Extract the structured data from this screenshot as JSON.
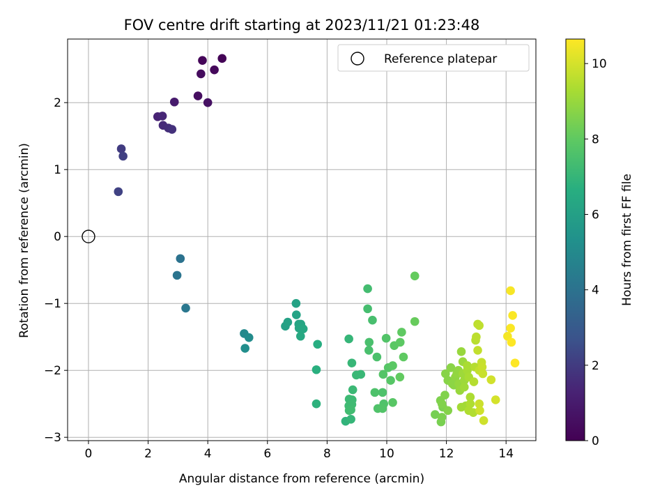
{
  "chart_data": {
    "type": "scatter",
    "title": "FOV centre drift starting at 2023/11/21 01:23:48",
    "xlabel": "Angular distance from reference (arcmin)",
    "ylabel": "Rotation from reference (arcmin)",
    "xlim": [
      -0.7,
      15.0
    ],
    "ylim": [
      -3.05,
      2.95
    ],
    "xticks": [
      0,
      2,
      4,
      6,
      8,
      10,
      12,
      14
    ],
    "yticks": [
      -3,
      -2,
      -1,
      0,
      1,
      2
    ],
    "grid": true,
    "legend": {
      "placement": "top-right",
      "entries": [
        "Reference platepar"
      ]
    },
    "reference_point": {
      "x": 0,
      "y": 0
    },
    "colorbar": {
      "label": "Hours from first FF file",
      "range": [
        0,
        10.65
      ],
      "ticks": [
        0,
        2,
        4,
        6,
        8,
        10
      ],
      "colormap": "viridis"
    },
    "points": [
      {
        "x": 4.48,
        "y": 2.66,
        "c": 0.1
      },
      {
        "x": 3.82,
        "y": 2.63,
        "c": 0.2
      },
      {
        "x": 4.22,
        "y": 2.49,
        "c": 0.3
      },
      {
        "x": 3.77,
        "y": 2.43,
        "c": 0.4
      },
      {
        "x": 3.67,
        "y": 2.1,
        "c": 0.5
      },
      {
        "x": 4.0,
        "y": 2.0,
        "c": 0.6
      },
      {
        "x": 2.88,
        "y": 2.01,
        "c": 1.0
      },
      {
        "x": 2.32,
        "y": 1.79,
        "c": 1.3
      },
      {
        "x": 2.48,
        "y": 1.8,
        "c": 1.4
      },
      {
        "x": 2.5,
        "y": 1.66,
        "c": 1.5
      },
      {
        "x": 2.68,
        "y": 1.62,
        "c": 1.6
      },
      {
        "x": 2.8,
        "y": 1.6,
        "c": 1.7
      },
      {
        "x": 1.1,
        "y": 1.31,
        "c": 2.0
      },
      {
        "x": 1.16,
        "y": 1.2,
        "c": 2.1
      },
      {
        "x": 1.0,
        "y": 0.67,
        "c": 2.2
      },
      {
        "x": 3.08,
        "y": -0.33,
        "c": 4.0
      },
      {
        "x": 2.97,
        "y": -0.58,
        "c": 4.1
      },
      {
        "x": 3.26,
        "y": -1.07,
        "c": 4.2
      },
      {
        "x": 5.22,
        "y": -1.45,
        "c": 5.0
      },
      {
        "x": 5.38,
        "y": -1.51,
        "c": 5.1
      },
      {
        "x": 5.25,
        "y": -1.67,
        "c": 5.2
      },
      {
        "x": 6.6,
        "y": -1.34,
        "c": 6.0
      },
      {
        "x": 6.68,
        "y": -1.28,
        "c": 6.05
      },
      {
        "x": 6.96,
        "y": -1.0,
        "c": 6.1
      },
      {
        "x": 6.97,
        "y": -1.17,
        "c": 6.15
      },
      {
        "x": 7.05,
        "y": -1.31,
        "c": 6.2
      },
      {
        "x": 7.12,
        "y": -1.31,
        "c": 6.25
      },
      {
        "x": 7.06,
        "y": -1.37,
        "c": 6.3
      },
      {
        "x": 7.2,
        "y": -1.38,
        "c": 6.35
      },
      {
        "x": 7.11,
        "y": -1.49,
        "c": 6.4
      },
      {
        "x": 7.68,
        "y": -1.61,
        "c": 6.6
      },
      {
        "x": 7.64,
        "y": -1.99,
        "c": 6.7
      },
      {
        "x": 7.64,
        "y": -2.5,
        "c": 6.8
      },
      {
        "x": 8.62,
        "y": -2.76,
        "c": 6.9
      },
      {
        "x": 8.8,
        "y": -2.73,
        "c": 7.0
      },
      {
        "x": 8.73,
        "y": -1.53,
        "c": 7.0
      },
      {
        "x": 8.83,
        "y": -1.89,
        "c": 7.05
      },
      {
        "x": 8.98,
        "y": -2.07,
        "c": 7.1
      },
      {
        "x": 9.13,
        "y": -2.06,
        "c": 7.1
      },
      {
        "x": 8.86,
        "y": -2.29,
        "c": 7.15
      },
      {
        "x": 8.74,
        "y": -2.43,
        "c": 7.2
      },
      {
        "x": 8.84,
        "y": -2.44,
        "c": 7.2
      },
      {
        "x": 8.83,
        "y": -2.51,
        "c": 7.25
      },
      {
        "x": 8.73,
        "y": -2.53,
        "c": 7.25
      },
      {
        "x": 8.8,
        "y": -2.59,
        "c": 7.3
      },
      {
        "x": 8.74,
        "y": -2.6,
        "c": 7.3
      },
      {
        "x": 9.36,
        "y": -0.78,
        "c": 7.35
      },
      {
        "x": 9.36,
        "y": -1.08,
        "c": 7.4
      },
      {
        "x": 9.52,
        "y": -1.25,
        "c": 7.45
      },
      {
        "x": 9.41,
        "y": -1.58,
        "c": 7.5
      },
      {
        "x": 9.4,
        "y": -1.7,
        "c": 7.5
      },
      {
        "x": 9.67,
        "y": -1.8,
        "c": 7.55
      },
      {
        "x": 9.6,
        "y": -2.33,
        "c": 7.6
      },
      {
        "x": 9.86,
        "y": -2.33,
        "c": 7.6
      },
      {
        "x": 9.9,
        "y": -2.5,
        "c": 7.65
      },
      {
        "x": 9.7,
        "y": -2.57,
        "c": 7.65
      },
      {
        "x": 9.86,
        "y": -2.57,
        "c": 7.7
      },
      {
        "x": 9.98,
        "y": -1.52,
        "c": 7.7
      },
      {
        "x": 9.88,
        "y": -2.06,
        "c": 7.75
      },
      {
        "x": 10.05,
        "y": -1.96,
        "c": 7.8
      },
      {
        "x": 10.13,
        "y": -2.15,
        "c": 7.8
      },
      {
        "x": 10.2,
        "y": -2.48,
        "c": 7.85
      },
      {
        "x": 10.2,
        "y": -1.93,
        "c": 7.9
      },
      {
        "x": 10.25,
        "y": -1.63,
        "c": 7.9
      },
      {
        "x": 10.45,
        "y": -1.58,
        "c": 7.95
      },
      {
        "x": 10.5,
        "y": -1.43,
        "c": 8.0
      },
      {
        "x": 10.56,
        "y": -1.8,
        "c": 8.0
      },
      {
        "x": 10.44,
        "y": -2.1,
        "c": 8.05
      },
      {
        "x": 10.94,
        "y": -0.59,
        "c": 8.1
      },
      {
        "x": 10.94,
        "y": -1.27,
        "c": 8.15
      },
      {
        "x": 11.62,
        "y": -2.66,
        "c": 8.4
      },
      {
        "x": 11.82,
        "y": -2.77,
        "c": 8.45
      },
      {
        "x": 11.85,
        "y": -2.7,
        "c": 8.5
      },
      {
        "x": 11.88,
        "y": -2.55,
        "c": 8.5
      },
      {
        "x": 11.8,
        "y": -2.45,
        "c": 8.55
      },
      {
        "x": 11.95,
        "y": -2.37,
        "c": 8.6
      },
      {
        "x": 11.85,
        "y": -2.5,
        "c": 8.6
      },
      {
        "x": 12.05,
        "y": -2.6,
        "c": 8.65
      },
      {
        "x": 11.97,
        "y": -2.05,
        "c": 8.7
      },
      {
        "x": 12.05,
        "y": -2.15,
        "c": 8.7
      },
      {
        "x": 12.15,
        "y": -1.96,
        "c": 8.75
      },
      {
        "x": 12.2,
        "y": -2.2,
        "c": 8.8
      },
      {
        "x": 12.25,
        "y": -2.22,
        "c": 8.8
      },
      {
        "x": 12.3,
        "y": -2.1,
        "c": 8.85
      },
      {
        "x": 12.35,
        "y": -2.05,
        "c": 8.9
      },
      {
        "x": 12.4,
        "y": -2.0,
        "c": 8.9
      },
      {
        "x": 12.42,
        "y": -2.2,
        "c": 8.95
      },
      {
        "x": 12.45,
        "y": -2.3,
        "c": 9.0
      },
      {
        "x": 12.5,
        "y": -1.72,
        "c": 9.0
      },
      {
        "x": 12.55,
        "y": -1.87,
        "c": 9.05
      },
      {
        "x": 12.55,
        "y": -2.05,
        "c": 9.1
      },
      {
        "x": 12.6,
        "y": -2.15,
        "c": 9.1
      },
      {
        "x": 12.6,
        "y": -2.25,
        "c": 9.15
      },
      {
        "x": 12.5,
        "y": -2.55,
        "c": 9.2
      },
      {
        "x": 12.65,
        "y": -2.53,
        "c": 9.2
      },
      {
        "x": 12.7,
        "y": -2.0,
        "c": 9.25
      },
      {
        "x": 12.7,
        "y": -1.93,
        "c": 9.3
      },
      {
        "x": 12.75,
        "y": -2.1,
        "c": 9.3
      },
      {
        "x": 12.8,
        "y": -2.4,
        "c": 9.35
      },
      {
        "x": 12.8,
        "y": -2.5,
        "c": 9.4
      },
      {
        "x": 12.75,
        "y": -2.6,
        "c": 9.4
      },
      {
        "x": 12.9,
        "y": -2.63,
        "c": 9.45
      },
      {
        "x": 12.92,
        "y": -2.17,
        "c": 9.5
      },
      {
        "x": 12.95,
        "y": -1.95,
        "c": 9.5
      },
      {
        "x": 12.98,
        "y": -1.55,
        "c": 9.55
      },
      {
        "x": 13.0,
        "y": -1.5,
        "c": 9.6
      },
      {
        "x": 13.05,
        "y": -1.31,
        "c": 9.6
      },
      {
        "x": 13.1,
        "y": -1.33,
        "c": 9.65
      },
      {
        "x": 13.05,
        "y": -1.7,
        "c": 9.7
      },
      {
        "x": 13.1,
        "y": -2.0,
        "c": 9.7
      },
      {
        "x": 13.18,
        "y": -1.88,
        "c": 9.75
      },
      {
        "x": 13.2,
        "y": -1.95,
        "c": 9.8
      },
      {
        "x": 13.22,
        "y": -2.05,
        "c": 9.8
      },
      {
        "x": 13.1,
        "y": -2.5,
        "c": 9.85
      },
      {
        "x": 13.12,
        "y": -2.6,
        "c": 9.9
      },
      {
        "x": 13.25,
        "y": -2.75,
        "c": 9.9
      },
      {
        "x": 13.5,
        "y": -2.14,
        "c": 9.95
      },
      {
        "x": 13.65,
        "y": -2.44,
        "c": 10.0
      },
      {
        "x": 14.05,
        "y": -1.49,
        "c": 10.5
      },
      {
        "x": 14.15,
        "y": -0.81,
        "c": 10.55
      },
      {
        "x": 14.22,
        "y": -1.18,
        "c": 10.6
      },
      {
        "x": 14.15,
        "y": -1.37,
        "c": 10.6
      },
      {
        "x": 14.18,
        "y": -1.58,
        "c": 10.65
      },
      {
        "x": 14.3,
        "y": -1.89,
        "c": 10.65
      }
    ]
  }
}
